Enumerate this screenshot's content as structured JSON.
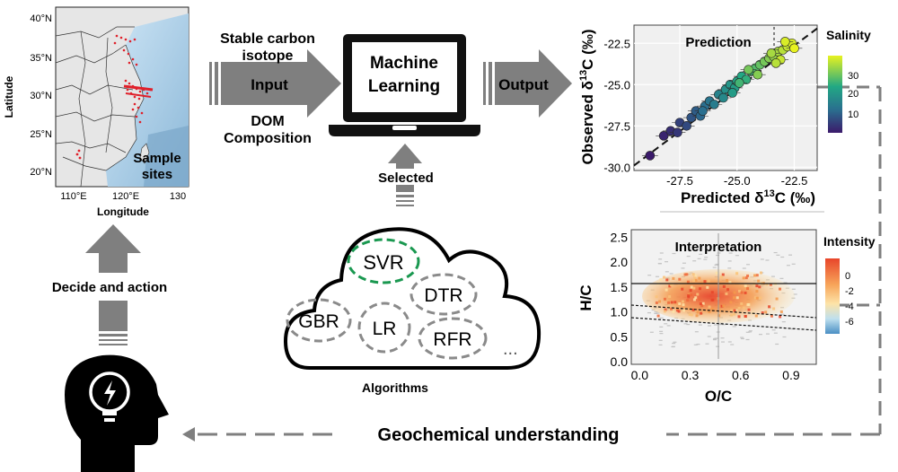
{
  "map": {
    "lat_label": "Latitude",
    "lon_label": "Longitude",
    "lat_ticks": [
      "40°N",
      "35°N",
      "30°N",
      "25°N",
      "20°N"
    ],
    "lon_ticks": [
      "110°E",
      "120°E",
      "130"
    ],
    "legend_line1": "Sample",
    "legend_line2": "sites"
  },
  "flow": {
    "input_top1": "Stable carbon",
    "input_top2": "isotope",
    "input_label": "Input",
    "input_bottom1": "DOM",
    "input_bottom2": "Composition",
    "ml_line1": "Machine",
    "ml_line2": "Learning",
    "output_label": "Output",
    "selected_label": "Selected",
    "algorithms_label": "Algorithms",
    "decide_label": "Decide and action",
    "understanding_label": "Geochemical understanding"
  },
  "algorithms": [
    {
      "name": "SVR",
      "selected": true
    },
    {
      "name": "DTR",
      "selected": false
    },
    {
      "name": "GBR",
      "selected": false
    },
    {
      "name": "LR",
      "selected": false
    },
    {
      "name": "RFR",
      "selected": false
    }
  ],
  "algorithms_more": "...",
  "colors": {
    "arrow": "#7f7f7f",
    "selected": "#1a9850",
    "unselected": "#8a8a8a"
  },
  "chart_data": [
    {
      "type": "scatter",
      "title": "Prediction",
      "xlabel": "Predicted δ13C (‰)",
      "ylabel": "Observed δ13C (‰)",
      "xlim": [
        -29.5,
        -21.5
      ],
      "ylim": [
        -30.2,
        -21.4
      ],
      "xticks": [
        "-27.5",
        "-25.0",
        "-22.5"
      ],
      "yticks": [
        "-22.5",
        "-25.0",
        "-27.5",
        "-30.0"
      ],
      "legend_title": "Salinity",
      "colorbar_ticks": [
        "30",
        "20",
        "10"
      ],
      "reference_line": "1:1",
      "points": [
        {
          "x": -28.8,
          "y": -29.3,
          "s": 2
        },
        {
          "x": -28.2,
          "y": -28.1,
          "s": 3
        },
        {
          "x": -27.9,
          "y": -27.8,
          "s": 4
        },
        {
          "x": -27.6,
          "y": -27.9,
          "s": 5
        },
        {
          "x": -27.5,
          "y": -27.3,
          "s": 6
        },
        {
          "x": -27.2,
          "y": -27.5,
          "s": 7
        },
        {
          "x": -27.0,
          "y": -27.0,
          "s": 8
        },
        {
          "x": -26.8,
          "y": -26.6,
          "s": 9
        },
        {
          "x": -26.6,
          "y": -26.9,
          "s": 10
        },
        {
          "x": -26.4,
          "y": -26.3,
          "s": 11
        },
        {
          "x": -26.2,
          "y": -26.0,
          "s": 12
        },
        {
          "x": -26.0,
          "y": -26.2,
          "s": 13
        },
        {
          "x": -25.8,
          "y": -25.6,
          "s": 14
        },
        {
          "x": -25.6,
          "y": -25.8,
          "s": 15
        },
        {
          "x": -25.5,
          "y": -25.3,
          "s": 16
        },
        {
          "x": -25.3,
          "y": -25.0,
          "s": 17
        },
        {
          "x": -25.1,
          "y": -25.2,
          "s": 18
        },
        {
          "x": -25.0,
          "y": -24.8,
          "s": 19
        },
        {
          "x": -24.8,
          "y": -24.5,
          "s": 20
        },
        {
          "x": -24.6,
          "y": -24.7,
          "s": 21
        },
        {
          "x": -24.4,
          "y": -24.2,
          "s": 22
        },
        {
          "x": -24.2,
          "y": -24.0,
          "s": 23
        },
        {
          "x": -24.0,
          "y": -23.8,
          "s": 24
        },
        {
          "x": -23.8,
          "y": -23.6,
          "s": 25
        },
        {
          "x": -23.6,
          "y": -23.4,
          "s": 26
        },
        {
          "x": -23.4,
          "y": -23.3,
          "s": 27
        },
        {
          "x": -23.2,
          "y": -23.0,
          "s": 28
        },
        {
          "x": -23.0,
          "y": -22.9,
          "s": 29
        },
        {
          "x": -22.8,
          "y": -22.7,
          "s": 30
        },
        {
          "x": -22.6,
          "y": -22.5,
          "s": 31
        },
        {
          "x": -22.5,
          "y": -22.8,
          "s": 32
        },
        {
          "x": -23.1,
          "y": -23.5,
          "s": 30
        },
        {
          "x": -23.5,
          "y": -23.1,
          "s": 28
        },
        {
          "x": -24.1,
          "y": -24.4,
          "s": 26
        },
        {
          "x": -24.5,
          "y": -24.1,
          "s": 25
        },
        {
          "x": -25.2,
          "y": -25.5,
          "s": 18
        },
        {
          "x": -26.5,
          "y": -26.6,
          "s": 11
        },
        {
          "x": -22.9,
          "y": -22.4,
          "s": 31
        },
        {
          "x": -23.3,
          "y": -23.7,
          "s": 29
        },
        {
          "x": -24.9,
          "y": -24.9,
          "s": 22
        }
      ]
    },
    {
      "type": "heatmap",
      "title": "Interpretation",
      "xlabel": "O/C",
      "ylabel": "H/C",
      "xlim": [
        -0.05,
        1.05
      ],
      "ylim": [
        -0.05,
        2.65
      ],
      "xticks": [
        "0.0",
        "0.3",
        "0.6",
        "0.9"
      ],
      "yticks": [
        "2.5",
        "2.0",
        "1.5",
        "1.0",
        "0.5",
        "0.0"
      ],
      "legend_title": "Intensity",
      "colorbar_ticks": [
        "0",
        "-2",
        "-4",
        "-6"
      ]
    }
  ]
}
